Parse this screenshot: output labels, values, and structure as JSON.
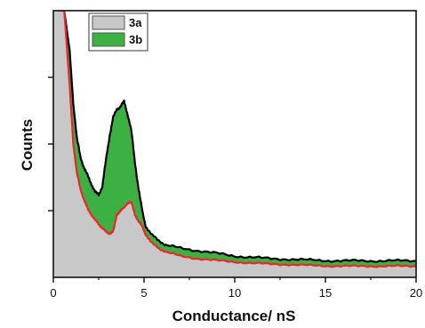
{
  "chart_data": {
    "type": "area",
    "xlabel": "Conductance/ nS",
    "ylabel": "Counts",
    "xlim": [
      0,
      20
    ],
    "ylim": [
      0,
      1
    ],
    "x_ticks": [
      0,
      5,
      10,
      15,
      20
    ],
    "y_tick_labels_shown": false,
    "grid": false,
    "legend_position": "top-left",
    "series": [
      {
        "name": "3a",
        "fill_color": "#c8c8c8",
        "edge_color": "#e8282a",
        "x": [
          0.3,
          0.6,
          0.9,
          1.1,
          1.3,
          1.5,
          1.7,
          1.9,
          2.1,
          2.3,
          2.5,
          2.7,
          2.9,
          3.1,
          3.3,
          3.5,
          3.7,
          3.9,
          4.1,
          4.3,
          4.5,
          4.7,
          4.9,
          5.1,
          5.4,
          5.8,
          6.2,
          7.0,
          8.0,
          9.0,
          10.0,
          11.0,
          12.0,
          13.0,
          14.0,
          15.0,
          16.0,
          17.0,
          18.0,
          19.0,
          20.0
        ],
        "y": [
          1.0,
          1.0,
          0.72,
          0.5,
          0.39,
          0.33,
          0.29,
          0.255,
          0.235,
          0.215,
          0.2,
          0.185,
          0.17,
          0.165,
          0.17,
          0.235,
          0.25,
          0.26,
          0.28,
          0.28,
          0.235,
          0.21,
          0.19,
          0.16,
          0.13,
          0.11,
          0.095,
          0.08,
          0.07,
          0.063,
          0.058,
          0.053,
          0.05,
          0.048,
          0.045,
          0.043,
          0.042,
          0.042,
          0.042,
          0.042,
          0.042
        ]
      },
      {
        "name": "3b",
        "fill_color": "#3cb043",
        "edge_color": "#000000",
        "x": [
          0.3,
          0.6,
          0.9,
          1.1,
          1.3,
          1.5,
          1.7,
          1.9,
          2.1,
          2.3,
          2.5,
          2.7,
          2.9,
          3.1,
          3.3,
          3.5,
          3.7,
          3.9,
          4.1,
          4.3,
          4.5,
          4.7,
          4.9,
          5.1,
          5.4,
          5.8,
          6.2,
          7.0,
          8.0,
          9.0,
          10.0,
          11.0,
          12.0,
          13.0,
          14.0,
          15.0,
          16.0,
          17.0,
          18.0,
          19.0,
          20.0
        ],
        "y": [
          1.0,
          1.0,
          0.85,
          0.65,
          0.52,
          0.45,
          0.41,
          0.38,
          0.35,
          0.32,
          0.31,
          0.34,
          0.44,
          0.53,
          0.6,
          0.63,
          0.64,
          0.66,
          0.61,
          0.55,
          0.43,
          0.33,
          0.25,
          0.19,
          0.16,
          0.14,
          0.12,
          0.11,
          0.1,
          0.09,
          0.08,
          0.075,
          0.07,
          0.068,
          0.065,
          0.063,
          0.062,
          0.062,
          0.062,
          0.062,
          0.062
        ]
      }
    ]
  }
}
